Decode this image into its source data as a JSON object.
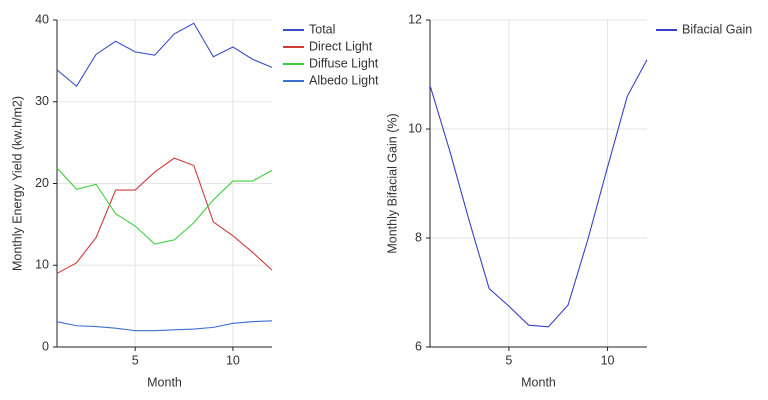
{
  "chart_data": [
    {
      "type": "line",
      "x_label": "Month",
      "y_label": "Monthly Energy Yield (kw.h/m2)",
      "x": [
        1,
        2,
        3,
        4,
        5,
        6,
        7,
        8,
        9,
        10,
        11,
        12
      ],
      "series": [
        {
          "name": "Total",
          "color": "#3a4fc9",
          "values": [
            33.9,
            31.9,
            35.8,
            37.4,
            36.1,
            35.7,
            38.3,
            39.6,
            35.5,
            36.7,
            35.2,
            34.2
          ]
        },
        {
          "name": "Direct Light",
          "color": "#d03a3a",
          "values": [
            9.0,
            10.3,
            13.4,
            19.2,
            19.2,
            21.4,
            23.1,
            22.2,
            15.3,
            13.6,
            11.6,
            9.4
          ]
        },
        {
          "name": "Diffuse Light",
          "color": "#3ccf3c",
          "values": [
            21.9,
            19.3,
            19.9,
            16.3,
            14.8,
            12.6,
            13.1,
            15.2,
            18.0,
            20.3,
            20.3,
            21.6
          ]
        },
        {
          "name": "Albedo Light",
          "color": "#3c6fd0",
          "values": [
            3.1,
            2.6,
            2.5,
            2.3,
            2.0,
            2.0,
            2.1,
            2.2,
            2.4,
            2.9,
            3.1,
            3.2
          ]
        }
      ],
      "xlim": [
        1,
        12
      ],
      "xticks": [
        5,
        10
      ],
      "ylim": [
        0,
        40
      ],
      "yticks": [
        0,
        10,
        20,
        30,
        40
      ],
      "grid": true,
      "legend": "outside-right"
    },
    {
      "type": "line",
      "x_label": "Month",
      "y_label": "Monthly Bifacial Gain (%)",
      "x": [
        1,
        2,
        3,
        4,
        5,
        6,
        7,
        8,
        9,
        10,
        11,
        12
      ],
      "series": [
        {
          "name": "Bifacial Gain",
          "color": "#3a3fc9",
          "values": [
            10.8,
            9.6,
            8.3,
            7.07,
            6.75,
            6.4,
            6.37,
            6.77,
            7.97,
            9.3,
            10.6,
            11.27
          ]
        }
      ],
      "xlim": [
        1,
        12
      ],
      "xticks": [
        5,
        10
      ],
      "ylim": [
        6,
        12
      ],
      "yticks": [
        6,
        8,
        10,
        12
      ],
      "grid": true,
      "legend": "outside-right"
    }
  ]
}
